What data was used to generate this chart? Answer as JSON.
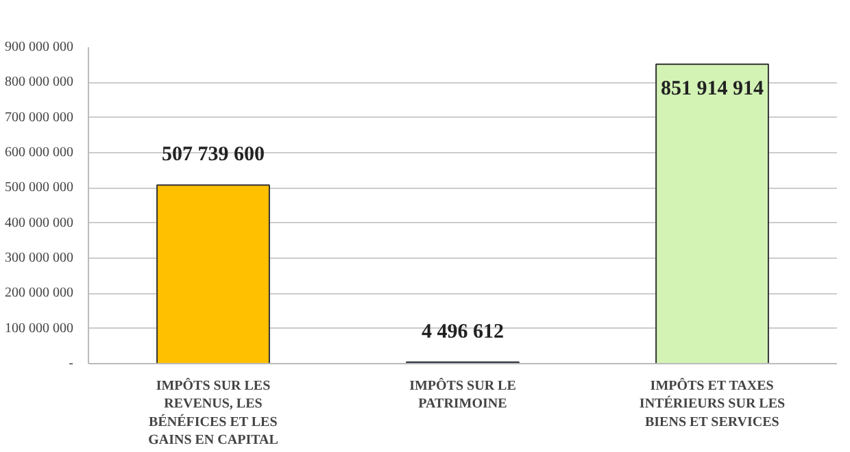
{
  "chart_data": {
    "type": "bar",
    "categories": [
      "IMPÔTS SUR LES REVENUS, LES BÉNÉFICES ET LES GAINS EN CAPITAL",
      "IMPÔTS SUR LE PATRIMOINE",
      "IMPÔTS ET TAXES INTÉRIEURS SUR LES BIENS ET SERVICES"
    ],
    "values": [
      507739600,
      4496612,
      851914914
    ],
    "colors": [
      "#ffc000",
      "#3c78c0",
      "#d3f3b5"
    ],
    "value_labels": [
      "507 739 600",
      "4 496 612",
      "851 914 914"
    ],
    "ylim": [
      0,
      900000000
    ],
    "yticks": [
      {
        "value": 0,
        "label": "-"
      },
      {
        "value": 100000000,
        "label": "100 000 000"
      },
      {
        "value": 200000000,
        "label": "200 000 000"
      },
      {
        "value": 300000000,
        "label": "300 000 000"
      },
      {
        "value": 400000000,
        "label": "400 000 000"
      },
      {
        "value": 500000000,
        "label": "500 000 000"
      },
      {
        "value": 600000000,
        "label": "600 000 000"
      },
      {
        "value": 700000000,
        "label": "700 000 000"
      },
      {
        "value": 800000000,
        "label": "800 000 000"
      },
      {
        "value": 900000000,
        "label": "900 000 000"
      }
    ],
    "grid": "y"
  }
}
